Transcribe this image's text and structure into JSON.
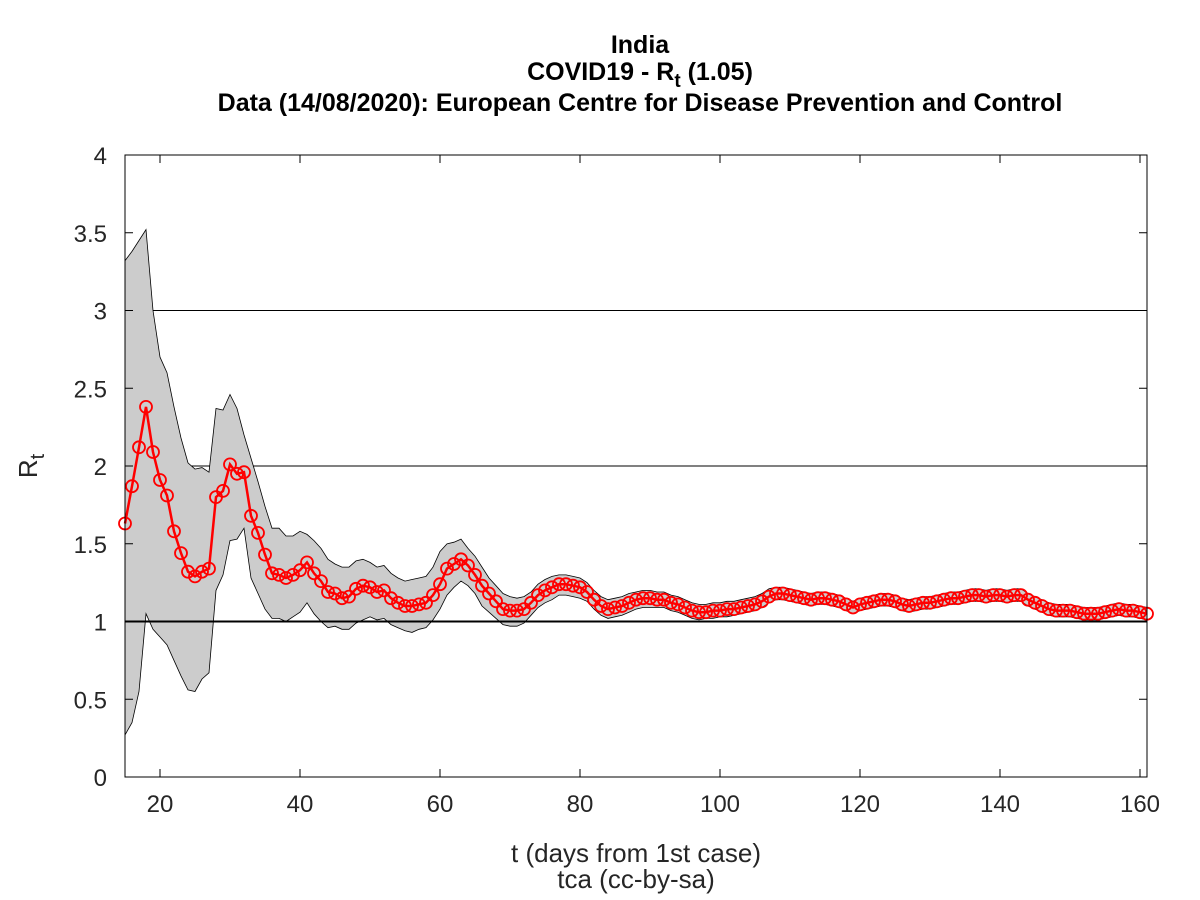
{
  "chart_data": {
    "type": "line",
    "title": "India",
    "title_line2_main": "COVID19 - R",
    "title_line2_sub": "t",
    "title_line2_value": " (1.05)",
    "subtitle": "Data (14/08/2020): European Centre for Disease Prevention and Control",
    "xlabel": "t (days from 1st case)",
    "ylabel_main": "R",
    "ylabel_sub": "t",
    "credit": "tca (cc-by-sa)",
    "xlim": [
      15,
      161
    ],
    "ylim": [
      0,
      4
    ],
    "x_ticks": [
      20,
      40,
      60,
      80,
      100,
      120,
      140,
      160
    ],
    "y_ticks": [
      0,
      0.5,
      1,
      1.5,
      2,
      2.5,
      3,
      3.5,
      4
    ],
    "y_tick_labels": [
      "0",
      "0.5",
      "1",
      "1.5",
      "2",
      "2.5",
      "3",
      "3.5",
      "4"
    ],
    "x_tick_labels": [
      "20",
      "40",
      "60",
      "80",
      "100",
      "120",
      "140",
      "160"
    ],
    "grid_lines_y": [
      1,
      2,
      3
    ],
    "reference_line_y": 1,
    "colors": {
      "series": "#ff0000",
      "band_fill": "#cccccc",
      "band_edge": "#000000",
      "grid": "#000000"
    },
    "series": [
      {
        "marker": "circle",
        "x": [
          15,
          16,
          17,
          18,
          19,
          20,
          21,
          22,
          23,
          24,
          25,
          26,
          27,
          28,
          29,
          30,
          31,
          32,
          33,
          34,
          35,
          36,
          37,
          38,
          39,
          40,
          41,
          42,
          43,
          44,
          45,
          46,
          47,
          48,
          49,
          50,
          51,
          52,
          53,
          54,
          55,
          56,
          57,
          58,
          59,
          60,
          61,
          62,
          63,
          64,
          65,
          66,
          67,
          68,
          69,
          70,
          71,
          72,
          73,
          74,
          75,
          76,
          77,
          78,
          79,
          80,
          81,
          82,
          83,
          84,
          85,
          86,
          87,
          88,
          89,
          90,
          91,
          92,
          93,
          94,
          95,
          96,
          97,
          98,
          99,
          100,
          101,
          102,
          103,
          104,
          105,
          106,
          107,
          108,
          109,
          110,
          111,
          112,
          113,
          114,
          115,
          116,
          117,
          118,
          119,
          120,
          121,
          122,
          123,
          124,
          125,
          126,
          127,
          128,
          129,
          130,
          131,
          132,
          133,
          134,
          135,
          136,
          137,
          138,
          139,
          140,
          141,
          142,
          143,
          144,
          145,
          146,
          147,
          148,
          149,
          150,
          151,
          152,
          153,
          154,
          155,
          156,
          157,
          158,
          159,
          160,
          161
        ],
        "y": [
          1.63,
          1.87,
          2.12,
          2.38,
          2.09,
          1.91,
          1.81,
          1.58,
          1.44,
          1.32,
          1.29,
          1.32,
          1.34,
          1.8,
          1.84,
          2.01,
          1.95,
          1.96,
          1.68,
          1.57,
          1.43,
          1.31,
          1.3,
          1.28,
          1.3,
          1.33,
          1.38,
          1.31,
          1.26,
          1.19,
          1.18,
          1.15,
          1.16,
          1.21,
          1.23,
          1.22,
          1.19,
          1.2,
          1.15,
          1.12,
          1.1,
          1.1,
          1.11,
          1.12,
          1.17,
          1.24,
          1.34,
          1.37,
          1.4,
          1.36,
          1.3,
          1.23,
          1.18,
          1.13,
          1.08,
          1.07,
          1.07,
          1.08,
          1.12,
          1.17,
          1.2,
          1.22,
          1.24,
          1.24,
          1.23,
          1.22,
          1.19,
          1.14,
          1.1,
          1.08,
          1.09,
          1.1,
          1.12,
          1.14,
          1.15,
          1.15,
          1.14,
          1.14,
          1.12,
          1.11,
          1.09,
          1.07,
          1.06,
          1.06,
          1.07,
          1.07,
          1.08,
          1.08,
          1.09,
          1.1,
          1.11,
          1.13,
          1.16,
          1.18,
          1.18,
          1.17,
          1.16,
          1.15,
          1.14,
          1.15,
          1.15,
          1.14,
          1.13,
          1.11,
          1.09,
          1.11,
          1.12,
          1.13,
          1.14,
          1.14,
          1.13,
          1.11,
          1.1,
          1.11,
          1.12,
          1.12,
          1.13,
          1.14,
          1.15,
          1.15,
          1.16,
          1.17,
          1.17,
          1.16,
          1.17,
          1.17,
          1.16,
          1.17,
          1.17,
          1.14,
          1.12,
          1.1,
          1.08,
          1.07,
          1.07,
          1.07,
          1.06,
          1.05,
          1.05,
          1.05,
          1.06,
          1.07,
          1.08,
          1.07,
          1.07,
          1.06,
          1.05
        ]
      }
    ],
    "band": {
      "x": [
        15,
        16,
        17,
        18,
        19,
        20,
        21,
        22,
        23,
        24,
        25,
        26,
        27,
        28,
        29,
        30,
        31,
        32,
        33,
        34,
        35,
        36,
        37,
        38,
        39,
        40,
        41,
        42,
        43,
        44,
        45,
        46,
        47,
        48,
        49,
        50,
        51,
        52,
        53,
        54,
        55,
        56,
        57,
        58,
        59,
        60,
        61,
        62,
        63,
        64,
        65,
        66,
        67,
        68,
        69,
        70,
        71,
        72,
        73,
        74,
        75,
        76,
        77,
        78,
        79,
        80,
        81,
        82,
        83,
        84,
        85,
        86,
        87,
        88,
        89,
        90,
        91,
        92,
        93,
        94,
        95,
        96,
        97,
        98,
        99,
        100,
        101,
        102,
        103,
        104,
        105,
        106,
        107,
        108,
        109,
        110,
        111,
        112,
        113,
        114,
        115,
        116,
        117,
        118,
        119,
        120,
        121,
        122,
        123,
        124,
        125,
        126,
        127,
        128,
        129,
        130,
        131,
        132,
        133,
        134,
        135,
        136,
        137,
        138,
        139,
        140,
        141,
        142,
        143,
        144,
        145,
        146,
        147,
        148,
        149,
        150,
        151,
        152,
        153,
        154,
        155,
        156,
        157,
        158,
        159,
        160,
        161
      ],
      "upper": [
        3.32,
        3.38,
        3.45,
        3.52,
        3.0,
        2.7,
        2.6,
        2.38,
        2.18,
        2.02,
        1.98,
        1.99,
        1.96,
        2.37,
        2.36,
        2.46,
        2.37,
        2.2,
        2.05,
        1.9,
        1.74,
        1.6,
        1.6,
        1.55,
        1.55,
        1.58,
        1.56,
        1.52,
        1.47,
        1.4,
        1.37,
        1.35,
        1.35,
        1.39,
        1.4,
        1.38,
        1.35,
        1.36,
        1.31,
        1.28,
        1.26,
        1.27,
        1.28,
        1.29,
        1.35,
        1.45,
        1.5,
        1.51,
        1.53,
        1.47,
        1.42,
        1.35,
        1.28,
        1.23,
        1.18,
        1.16,
        1.15,
        1.16,
        1.19,
        1.24,
        1.27,
        1.29,
        1.3,
        1.3,
        1.29,
        1.28,
        1.25,
        1.2,
        1.16,
        1.14,
        1.15,
        1.16,
        1.18,
        1.19,
        1.2,
        1.2,
        1.19,
        1.19,
        1.17,
        1.16,
        1.14,
        1.12,
        1.11,
        1.11,
        1.12,
        1.12,
        1.13,
        1.13,
        1.14,
        1.15,
        1.16,
        1.18,
        1.21,
        1.22,
        1.22,
        1.21,
        1.2,
        1.19,
        1.18,
        1.19,
        1.19,
        1.18,
        1.17,
        1.15,
        1.13,
        1.15,
        1.16,
        1.17,
        1.18,
        1.18,
        1.17,
        1.15,
        1.14,
        1.15,
        1.16,
        1.16,
        1.17,
        1.18,
        1.19,
        1.19,
        1.2,
        1.21,
        1.21,
        1.2,
        1.21,
        1.21,
        1.2,
        1.21,
        1.21,
        1.18,
        1.16,
        1.14,
        1.12,
        1.11,
        1.11,
        1.11,
        1.1,
        1.09,
        1.09,
        1.09,
        1.1,
        1.11,
        1.12,
        1.11,
        1.11,
        1.1,
        1.09
      ],
      "lower": [
        0.27,
        0.35,
        0.55,
        1.05,
        0.95,
        0.9,
        0.85,
        0.75,
        0.65,
        0.56,
        0.55,
        0.63,
        0.67,
        1.2,
        1.3,
        1.52,
        1.53,
        1.6,
        1.28,
        1.18,
        1.08,
        1.02,
        1.02,
        1.0,
        1.03,
        1.06,
        1.12,
        1.05,
        1.0,
        0.96,
        0.97,
        0.95,
        0.95,
        0.99,
        1.01,
        1.03,
        1.01,
        1.02,
        0.98,
        0.96,
        0.94,
        0.93,
        0.95,
        0.96,
        1.01,
        1.08,
        1.17,
        1.22,
        1.26,
        1.23,
        1.18,
        1.1,
        1.06,
        1.02,
        0.98,
        0.97,
        0.97,
        0.99,
        1.04,
        1.09,
        1.12,
        1.14,
        1.17,
        1.17,
        1.16,
        1.15,
        1.13,
        1.08,
        1.04,
        1.02,
        1.03,
        1.04,
        1.06,
        1.08,
        1.09,
        1.09,
        1.09,
        1.09,
        1.07,
        1.06,
        1.04,
        1.02,
        1.01,
        1.02,
        1.02,
        1.03,
        1.03,
        1.04,
        1.05,
        1.06,
        1.07,
        1.09,
        1.12,
        1.14,
        1.14,
        1.13,
        1.12,
        1.11,
        1.1,
        1.11,
        1.11,
        1.1,
        1.09,
        1.07,
        1.05,
        1.07,
        1.08,
        1.09,
        1.1,
        1.1,
        1.09,
        1.07,
        1.06,
        1.07,
        1.08,
        1.08,
        1.09,
        1.1,
        1.11,
        1.11,
        1.12,
        1.13,
        1.13,
        1.12,
        1.13,
        1.13,
        1.12,
        1.13,
        1.13,
        1.1,
        1.08,
        1.06,
        1.04,
        1.03,
        1.03,
        1.03,
        1.02,
        1.01,
        1.01,
        1.01,
        1.02,
        1.03,
        1.04,
        1.03,
        1.03,
        1.02,
        1.01
      ]
    }
  }
}
